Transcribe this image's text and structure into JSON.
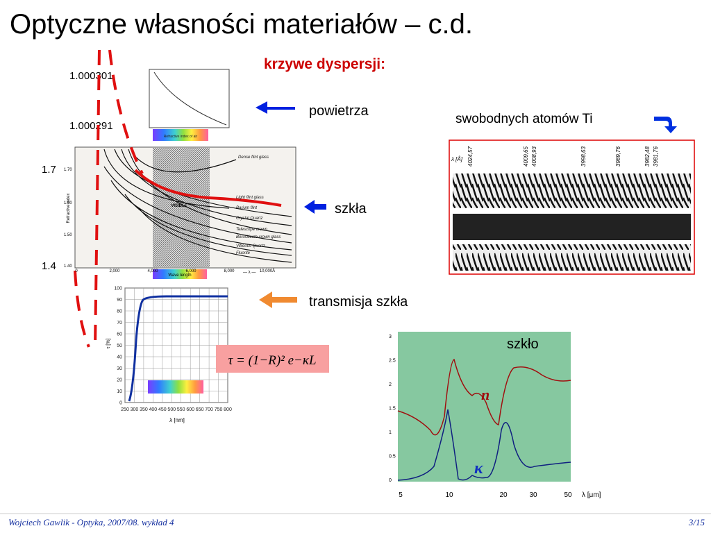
{
  "title": "Optyczne własności materiałów – c.d.",
  "subtitle": "krzywe dyspersji:",
  "air": {
    "label_top": "1.000301",
    "label_bottom": "1.000291",
    "bar_label": "Refractive index of air",
    "caption": "powietrza"
  },
  "glass": {
    "label_top": "1.7",
    "label_bottom": "1.4",
    "y_axis_label": "Refractive index",
    "yticks": [
      "1.70",
      "1.60",
      "1.50",
      "1.40"
    ],
    "xticks": [
      "0",
      "2,000",
      "4,000",
      "6,000",
      "8,000",
      "10,000Å"
    ],
    "x_axis_label": "— λ —",
    "band_label": "VISIBLE",
    "bar_label": "Wave length",
    "curves": [
      "Dense flint glass",
      "Light flint glass",
      "Barium flint",
      "Crystal Quartz",
      "Telescope crown",
      "Borosilicate crown glass",
      "Vitreous Quartz",
      "Fluorite"
    ],
    "caption": "szkła"
  },
  "transmission": {
    "yticks": [
      "100",
      "90",
      "80",
      "70",
      "60",
      "50",
      "40",
      "30",
      "20",
      "10",
      "0"
    ],
    "xticks": [
      "250",
      "300",
      "350",
      "400",
      "450",
      "500",
      "550",
      "600",
      "650",
      "700",
      "750",
      "800"
    ],
    "x_axis_label": "λ [nm]",
    "y_axis_label": "τ [%]",
    "caption": "transmisja szkła"
  },
  "formula": "τ = (1−R)² e−κL",
  "spectrum": {
    "caption": "swobodnych atomów Ti",
    "axis_label": "λ [Å]",
    "lines": [
      "4024,57",
      "4009,65",
      "4008,93",
      "3998,63",
      "3989,76",
      "3982,48",
      "3981,76"
    ]
  },
  "dispersion": {
    "label": "szkło",
    "n_label": "n",
    "k_label": "κ",
    "yticks": [
      "3",
      "2.5",
      "2",
      "1.5",
      "1",
      "0.5",
      "0"
    ],
    "xticks": [
      "5",
      "10",
      "20",
      "30",
      "50"
    ],
    "x_axis_label": "λ [μm]"
  },
  "footer": {
    "left": "Wojciech Gawlik - Optyka, 2007/08. wykład 4",
    "right": "3/15"
  }
}
